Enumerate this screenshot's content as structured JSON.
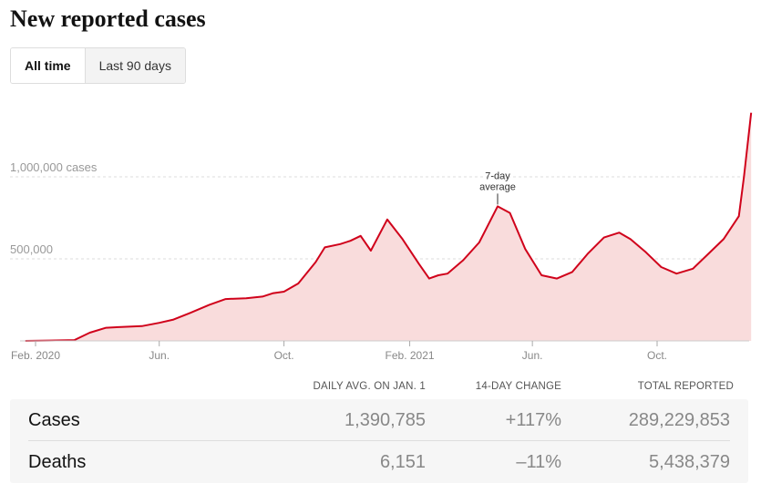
{
  "title": "New reported cases",
  "toggle": {
    "all_time": "All time",
    "last_90": "Last 90 days",
    "selected": "All time"
  },
  "chart_data": {
    "type": "area",
    "series": [
      {
        "name": "7-day average",
        "color": "#d0021b",
        "fill": "#f9dcdc",
        "points": [
          [
            "2020-01-22",
            0
          ],
          [
            "2020-02-15",
            2000
          ],
          [
            "2020-03-10",
            5000
          ],
          [
            "2020-03-25",
            50000
          ],
          [
            "2020-04-10",
            80000
          ],
          [
            "2020-04-25",
            85000
          ],
          [
            "2020-05-15",
            90000
          ],
          [
            "2020-06-01",
            110000
          ],
          [
            "2020-06-15",
            130000
          ],
          [
            "2020-07-01",
            170000
          ],
          [
            "2020-07-20",
            220000
          ],
          [
            "2020-08-05",
            255000
          ],
          [
            "2020-08-25",
            260000
          ],
          [
            "2020-09-10",
            270000
          ],
          [
            "2020-09-20",
            290000
          ],
          [
            "2020-10-01",
            300000
          ],
          [
            "2020-10-15",
            350000
          ],
          [
            "2020-11-01",
            480000
          ],
          [
            "2020-11-10",
            570000
          ],
          [
            "2020-11-25",
            590000
          ],
          [
            "2020-12-05",
            610000
          ],
          [
            "2020-12-15",
            640000
          ],
          [
            "2020-12-25",
            550000
          ],
          [
            "2021-01-10",
            740000
          ],
          [
            "2021-01-25",
            620000
          ],
          [
            "2021-02-10",
            470000
          ],
          [
            "2021-02-20",
            380000
          ],
          [
            "2021-03-01",
            400000
          ],
          [
            "2021-03-10",
            410000
          ],
          [
            "2021-03-25",
            490000
          ],
          [
            "2021-04-10",
            600000
          ],
          [
            "2021-04-28",
            820000
          ],
          [
            "2021-05-10",
            780000
          ],
          [
            "2021-05-25",
            560000
          ],
          [
            "2021-06-10",
            400000
          ],
          [
            "2021-06-25",
            380000
          ],
          [
            "2021-07-10",
            420000
          ],
          [
            "2021-07-25",
            530000
          ],
          [
            "2021-08-10",
            630000
          ],
          [
            "2021-08-25",
            660000
          ],
          [
            "2021-09-05",
            620000
          ],
          [
            "2021-09-20",
            540000
          ],
          [
            "2021-10-05",
            450000
          ],
          [
            "2021-10-20",
            410000
          ],
          [
            "2021-11-05",
            440000
          ],
          [
            "2021-11-20",
            530000
          ],
          [
            "2021-12-05",
            620000
          ],
          [
            "2021-12-20",
            760000
          ],
          [
            "2021-12-25",
            1000000
          ],
          [
            "2022-01-01",
            1390785
          ]
        ]
      }
    ],
    "y_ticks": [
      {
        "value": 500000,
        "label": "500,000"
      },
      {
        "value": 1000000,
        "label": "1,000,000 cases"
      }
    ],
    "x_ticks": [
      {
        "date": "2020-02-01",
        "label": "Feb. 2020"
      },
      {
        "date": "2020-06-01",
        "label": "Jun."
      },
      {
        "date": "2020-10-01",
        "label": "Oct."
      },
      {
        "date": "2021-02-01",
        "label": "Feb. 2021"
      },
      {
        "date": "2021-06-01",
        "label": "Jun."
      },
      {
        "date": "2021-10-01",
        "label": "Oct."
      }
    ],
    "annotation": {
      "date": "2021-04-28",
      "line1": "7-day",
      "line2": "average"
    },
    "xlim": [
      "2020-01-22",
      "2022-01-01"
    ],
    "ylim": [
      0,
      1390785
    ],
    "grid": "horizontal dashed"
  },
  "table": {
    "headers": [
      "DAILY AVG. ON JAN. 1",
      "14-DAY CHANGE",
      "TOTAL REPORTED"
    ],
    "rows": [
      {
        "label": "Cases",
        "avg": "1,390,785",
        "change": "+117%",
        "total": "289,229,853"
      },
      {
        "label": "Deaths",
        "avg": "6,151",
        "change": "–11%",
        "total": "5,438,379"
      }
    ]
  }
}
